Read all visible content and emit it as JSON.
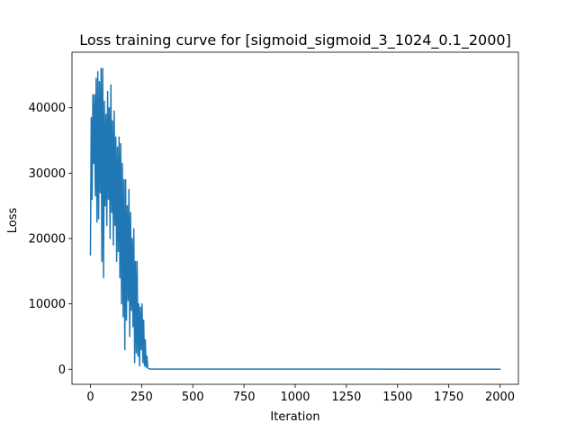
{
  "chart_data": {
    "type": "line",
    "title": "Loss training curve for [sigmoid_sigmoid_3_1024_0.1_2000]",
    "xlabel": "Iteration",
    "ylabel": "Loss",
    "xlim": [
      -90,
      2090
    ],
    "ylim": [
      -2300,
      48500
    ],
    "xticks": [
      0,
      250,
      500,
      750,
      1000,
      1250,
      1500,
      1750,
      2000
    ],
    "yticks": [
      0,
      10000,
      20000,
      30000,
      40000
    ],
    "grid": false,
    "legend": "none",
    "series": [
      {
        "color": "#1f77b4",
        "x": [
          0,
          4,
          8,
          12,
          16,
          20,
          24,
          28,
          32,
          36,
          40,
          44,
          48,
          52,
          56,
          60,
          64,
          68,
          72,
          76,
          80,
          84,
          88,
          92,
          96,
          100,
          104,
          108,
          112,
          116,
          120,
          124,
          128,
          132,
          136,
          140,
          144,
          148,
          152,
          156,
          160,
          164,
          168,
          172,
          176,
          180,
          184,
          188,
          192,
          196,
          200,
          204,
          208,
          212,
          216,
          220,
          224,
          228,
          232,
          236,
          240,
          244,
          248,
          252,
          256,
          260,
          264,
          268,
          272,
          276,
          280,
          284,
          288,
          292,
          300,
          400,
          600,
          800,
          1000,
          1200,
          1400,
          1600,
          1800,
          2000
        ],
        "y": [
          17500,
          38500,
          26000,
          42000,
          31500,
          42000,
          26500,
          44500,
          22500,
          45500,
          23000,
          44000,
          27000,
          46000,
          16500,
          46000,
          14000,
          41000,
          25000,
          39000,
          22000,
          42500,
          26000,
          40000,
          20000,
          43500,
          24000,
          38000,
          19000,
          39500,
          22000,
          35500,
          16500,
          34000,
          18000,
          35500,
          14000,
          34500,
          10000,
          31500,
          8000,
          29000,
          3000,
          29000,
          7500,
          25000,
          10500,
          27500,
          5000,
          24000,
          9000,
          20000,
          6500,
          21500,
          1000,
          16500,
          2500,
          16500,
          2000,
          10000,
          500,
          9500,
          3000,
          10000,
          1000,
          7500,
          500,
          4500,
          300,
          2000,
          200,
          100,
          60,
          40,
          30,
          25,
          20,
          18,
          16,
          15,
          15,
          14,
          14,
          14
        ]
      }
    ]
  }
}
